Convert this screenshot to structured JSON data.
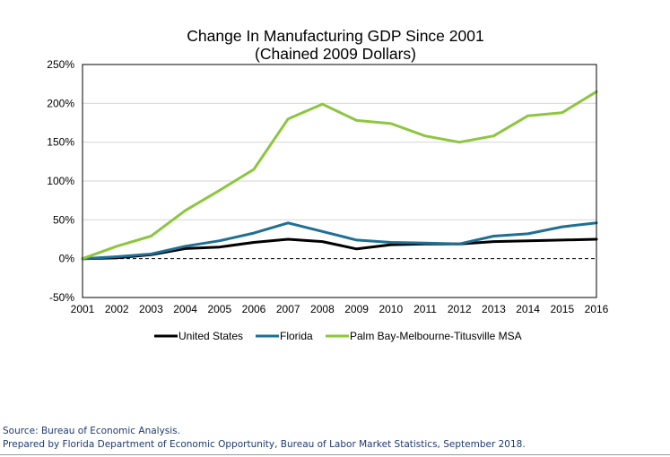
{
  "chart_data": {
    "type": "line",
    "title": "Change In Manufacturing GDP Since 2001",
    "subtitle": "(Chained 2009 Dollars)",
    "xlabel": "",
    "ylabel": "",
    "x": [
      "2001",
      "2002",
      "2003",
      "2004",
      "2005",
      "2006",
      "2007",
      "2008",
      "2009",
      "2010",
      "2011",
      "2012",
      "2013",
      "2014",
      "2015",
      "2016"
    ],
    "ylim": [
      -50,
      250
    ],
    "yticks": [
      250,
      200,
      150,
      100,
      50,
      0,
      -50
    ],
    "ytick_labels": [
      "250%",
      "200%",
      "150%",
      "100%",
      "50%",
      "0%",
      "-50%"
    ],
    "grid": true,
    "reference_line": {
      "value": 0,
      "style": "dashed"
    },
    "legend_position": "bottom",
    "series": [
      {
        "name": "United States",
        "color": "#000000",
        "values": [
          0,
          1,
          5,
          13,
          15,
          21,
          25,
          22,
          12.5,
          18,
          19,
          19,
          22,
          23,
          24,
          25
        ]
      },
      {
        "name": "Florida",
        "color": "#1f6f94",
        "values": [
          0,
          2.5,
          6,
          16,
          23,
          33,
          46,
          35,
          24,
          21,
          20,
          19,
          29,
          32,
          41,
          46
        ]
      },
      {
        "name": "Palm Bay-Melbourne-Titusville MSA",
        "color": "#8dc63f",
        "values": [
          0,
          16,
          29,
          62,
          88,
          115,
          180,
          199,
          178,
          174,
          158,
          150,
          158,
          184,
          188,
          215
        ]
      }
    ]
  },
  "footer": {
    "source": "Source: Bureau of Economic Analysis.",
    "prepared_by": "Prepared by Florida Department of Economic Opportunity,  Bureau of Labor Market Statistics, September 2018."
  }
}
